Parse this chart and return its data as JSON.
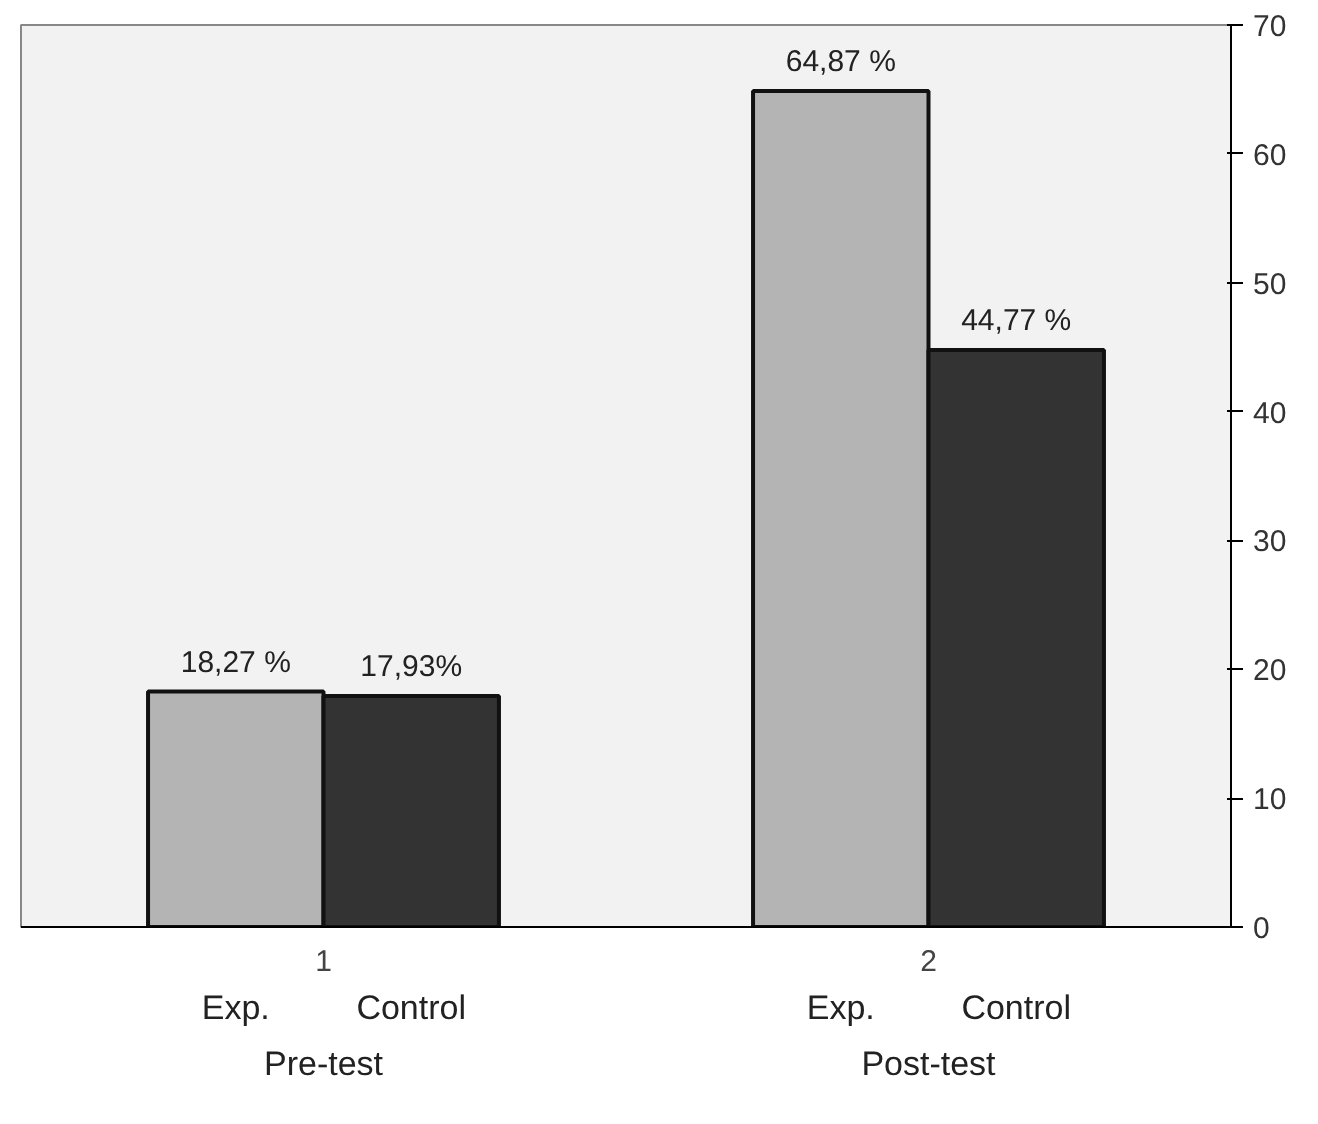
{
  "chart_data": {
    "type": "bar",
    "categories": [
      "1",
      "2"
    ],
    "series": [
      {
        "name": "Exp.",
        "color": "#b4b4b4",
        "values": [
          18.27,
          64.87
        ],
        "value_labels": [
          "18,27 %",
          "64,87 %"
        ]
      },
      {
        "name": "Control",
        "color": "#333333",
        "values": [
          17.93,
          44.77
        ],
        "value_labels": [
          "17,93%",
          "44,77 %"
        ]
      }
    ],
    "ylim": [
      0,
      70
    ],
    "yticks": [
      0,
      10,
      20,
      30,
      40,
      50,
      60,
      70
    ],
    "grid": false,
    "legend": false,
    "annotations": [
      "Pre-test",
      "Post-test"
    ]
  }
}
